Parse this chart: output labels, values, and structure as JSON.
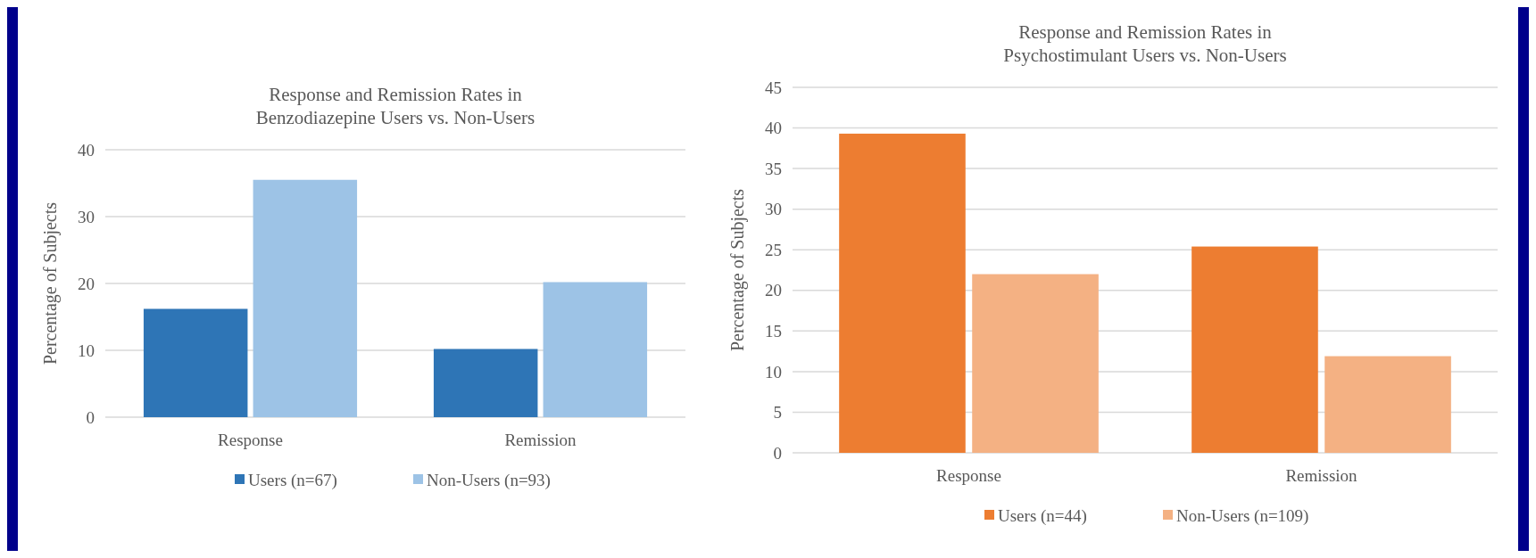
{
  "chart_data": [
    {
      "type": "bar",
      "title": "Response and Remission Rates in Benzodiazepine Users vs. Non-Users",
      "ylabel": "Percentage of Subjects",
      "categories": [
        "Response",
        "Remission"
      ],
      "series": [
        {
          "name": "Users (n=67)",
          "color": "#2e75b6",
          "values": [
            16.2,
            10.2
          ]
        },
        {
          "name": "Non-Users (n=93)",
          "color": "#9dc3e6",
          "values": [
            35.5,
            20.2
          ]
        }
      ],
      "ylim": [
        0,
        40
      ],
      "yticks": [
        0,
        10,
        20,
        30,
        40
      ],
      "grid": "y",
      "legend": "bottom"
    },
    {
      "type": "bar",
      "title": "Response and Remission Rates in Psychostimulant Users vs. Non-Users",
      "ylabel": "Percentage of Subjects",
      "categories": [
        "Response",
        "Remission"
      ],
      "series": [
        {
          "name": "Users (n=44)",
          "color": "#ed7d31",
          "values": [
            39.3,
            25.4
          ]
        },
        {
          "name": "Non-Users (n=109)",
          "color": "#f4b183",
          "values": [
            22.0,
            11.9
          ]
        }
      ],
      "ylim": [
        0,
        45
      ],
      "yticks": [
        0,
        5,
        10,
        15,
        20,
        25,
        30,
        35,
        40,
        45
      ],
      "grid": "y",
      "legend": "bottom"
    }
  ]
}
